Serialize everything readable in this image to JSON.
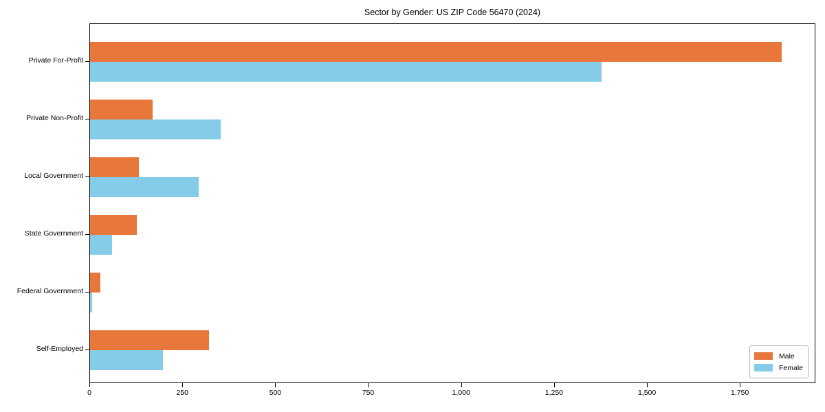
{
  "chart_data": {
    "type": "bar",
    "orientation": "horizontal",
    "title": "Sector by Gender: US ZIP Code 56470 (2024)",
    "categories": [
      "Private For-Profit",
      "Private Non-Profit",
      "Local Government",
      "State Government",
      "Federal Government",
      "Self-Employed"
    ],
    "series": [
      {
        "name": "Male",
        "color": "#e8773c",
        "values": [
          1860,
          168,
          131,
          126,
          28,
          320
        ]
      },
      {
        "name": "Female",
        "color": "#85cce8",
        "values": [
          1376,
          352,
          292,
          60,
          5,
          196
        ]
      }
    ],
    "xlabel": "",
    "ylabel": "",
    "xlim": [
      0,
      1953
    ],
    "xticks": [
      0,
      250,
      500,
      750,
      1000,
      1250,
      1500,
      1750
    ],
    "xtick_labels": [
      "0",
      "250",
      "500",
      "750",
      "1,000",
      "1,250",
      "1,500",
      "1,750"
    ],
    "grid": false,
    "legend_position": "lower right"
  }
}
